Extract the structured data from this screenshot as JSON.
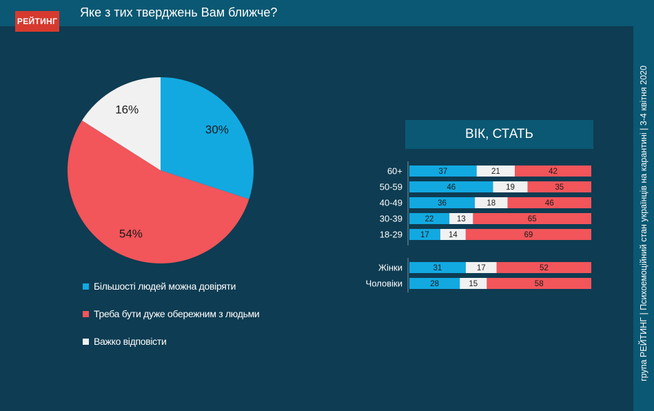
{
  "header": {
    "logo": "РЕЙТИНГ",
    "title": "Яке з тих тверджень Вам ближче?"
  },
  "sidebar": {
    "text": "група РЕЙТИНГ  |  Психоемоційний стан українців на карантині  |  3-4 квітня 2020"
  },
  "colors": {
    "blue": "#12a9e1",
    "red": "#f2555a",
    "white": "#f1f1f1",
    "background": "#0e3c52",
    "panel": "#0a5873"
  },
  "chart_data": [
    {
      "type": "pie",
      "slices": [
        {
          "label": "Більшості людей можна довіряти",
          "value": 30,
          "display": "30%",
          "color": "#12a9e1"
        },
        {
          "label": "Треба бути дуже обережним з людьми",
          "value": 54,
          "display": "54%",
          "color": "#f2555a"
        },
        {
          "label": "Важко відповісти",
          "value": 16,
          "display": "16%",
          "color": "#f1f1f1"
        }
      ]
    },
    {
      "type": "bar",
      "title": "ВІК, СТАТЬ",
      "categories": [
        "60+",
        "50-59",
        "40-49",
        "30-39",
        "18-29",
        "Жінки",
        "Чоловіки"
      ],
      "series": [
        {
          "name": "Більшості людей можна довіряти",
          "color": "#12a9e1",
          "values": [
            37,
            46,
            36,
            22,
            17,
            31,
            28
          ]
        },
        {
          "name": "Важко відповісти",
          "color": "#f1f1f1",
          "values": [
            21,
            19,
            18,
            13,
            14,
            17,
            15
          ]
        },
        {
          "name": "Треба бути дуже обережним з людьми",
          "color": "#f2555a",
          "values": [
            42,
            35,
            46,
            65,
            69,
            52,
            58
          ]
        }
      ]
    }
  ]
}
